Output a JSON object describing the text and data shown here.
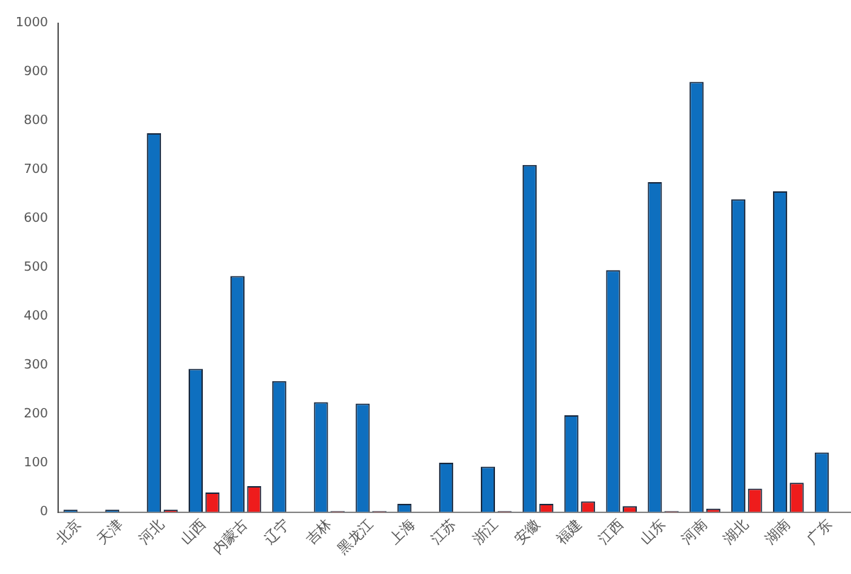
{
  "chart_data": {
    "type": "bar",
    "categories": [
      "北京",
      "天津",
      "河北",
      "山西",
      "内蒙古",
      "辽宁",
      "吉林",
      "黑龙江",
      "上海",
      "江苏",
      "浙江",
      "安徽",
      "福建",
      "江西",
      "山东",
      "河南",
      "湖北",
      "湖南",
      "广东"
    ],
    "series": [
      {
        "color": "#0e6fbf",
        "values": [
          5,
          5,
          775,
          293,
          483,
          268,
          225,
          222,
          17,
          101,
          93,
          710,
          198,
          495,
          675,
          880,
          640,
          656,
          122
        ]
      },
      {
        "color": "#ee1c1c",
        "values": [
          0,
          0,
          5,
          40,
          53,
          0,
          2,
          2,
          0,
          0,
          2,
          17,
          22,
          12,
          2,
          7,
          48,
          60,
          null
        ]
      }
    ],
    "ylim": [
      0,
      1000
    ],
    "yticks": [
      0,
      100,
      200,
      300,
      400,
      500,
      600,
      700,
      800,
      900,
      1000
    ],
    "grid": false,
    "legend": false
  }
}
